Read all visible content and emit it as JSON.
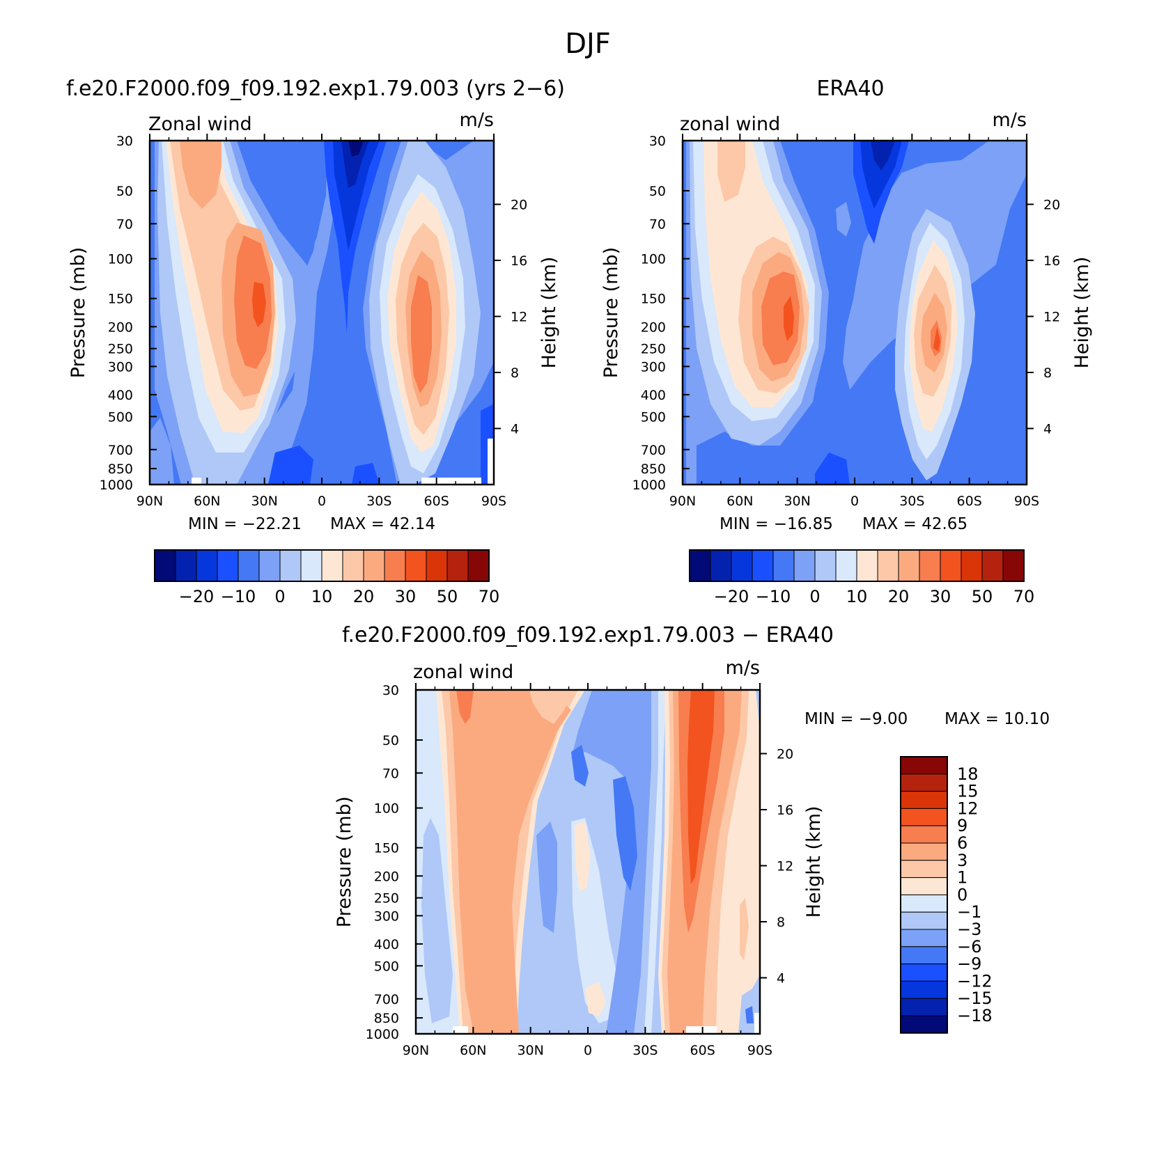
{
  "figure": {
    "title": "DJF",
    "panels": [
      {
        "id": "model",
        "title": "f.e20.F2000.f09_f09.192.exp1.79.003 (yrs 2−6)",
        "left_label": "Zonal wind",
        "right_label": "m/s",
        "ylabel": "Pressure (mb)",
        "ylabel_right": "Height (km)",
        "min_text": "MIN = −22.21",
        "max_text": "MAX = 42.14",
        "colorbar_labels": [
          "−20",
          "−10",
          "0",
          "10",
          "20",
          "30",
          "50",
          "70"
        ]
      },
      {
        "id": "obs",
        "title": "ERA40",
        "left_label": "zonal wind",
        "right_label": "m/s",
        "ylabel": "Pressure (mb)",
        "ylabel_right": "Height (km)",
        "min_text": "MIN = −16.85",
        "max_text": "MAX = 42.65",
        "colorbar_labels": [
          "−20",
          "−10",
          "0",
          "10",
          "20",
          "30",
          "50",
          "70"
        ]
      },
      {
        "id": "diff",
        "title": "f.e20.F2000.f09_f09.192.exp1.79.003 − ERA40",
        "left_label": "zonal wind",
        "right_label": "m/s",
        "ylabel": "Pressure (mb)",
        "ylabel_right": "Height (km)",
        "min_text": "MIN = −9.00",
        "max_text": "MAX = 10.10",
        "colorbar_labels": [
          "18",
          "15",
          "12",
          "9",
          "6",
          "3",
          "1",
          "0",
          "−1",
          "−3",
          "−6",
          "−9",
          "−12",
          "−15",
          "−18"
        ]
      }
    ],
    "x_tick_labels": [
      "90N",
      "60N",
      "30N",
      "0",
      "30S",
      "60S",
      "90S"
    ],
    "y_tick_labels": [
      "30",
      "50",
      "70",
      "100",
      "150",
      "200",
      "250",
      "300",
      "400",
      "500",
      "700",
      "850",
      "1000"
    ],
    "height_tick_labels": [
      "20",
      "16",
      "12",
      "8",
      "4"
    ]
  },
  "chart_data": [
    {
      "type": "heatmap",
      "title": "f.e20.F2000.f09_f09.192.exp1.79.003 (yrs 2−6)",
      "xlabel": "",
      "ylabel": "Pressure (mb)",
      "x_ticks": [
        "90N",
        "60N",
        "30N",
        "0",
        "30S",
        "60S",
        "90S"
      ],
      "y_ticks": [
        30,
        50,
        70,
        100,
        150,
        200,
        250,
        300,
        400,
        500,
        700,
        850,
        1000
      ],
      "yscale": "log",
      "ylim": [
        1000,
        30
      ],
      "units": "m/s",
      "min": -22.21,
      "max": 42.14,
      "contour_levels": [
        -25,
        -20,
        -15,
        -10,
        -5,
        0,
        5,
        10,
        15,
        20,
        25,
        30,
        40,
        50,
        60,
        70,
        80
      ],
      "features": [
        {
          "kind": "max",
          "lat": 30,
          "lev": 180,
          "value": 42.14
        },
        {
          "kind": "max",
          "lat": -50,
          "lev": 220,
          "value": 35
        },
        {
          "kind": "min",
          "lat": -15,
          "lev": 30,
          "value": -22.21
        }
      ]
    },
    {
      "type": "heatmap",
      "title": "ERA40",
      "xlabel": "",
      "ylabel": "Pressure (mb)",
      "x_ticks": [
        "90N",
        "60N",
        "30N",
        "0",
        "30S",
        "60S",
        "90S"
      ],
      "y_ticks": [
        30,
        50,
        70,
        100,
        150,
        200,
        250,
        300,
        400,
        500,
        700,
        850,
        1000
      ],
      "yscale": "log",
      "ylim": [
        1000,
        30
      ],
      "units": "m/s",
      "min": -16.85,
      "max": 42.65,
      "contour_levels": [
        -25,
        -20,
        -15,
        -10,
        -5,
        0,
        5,
        10,
        15,
        20,
        25,
        30,
        40,
        50,
        60,
        70,
        80
      ],
      "features": [
        {
          "kind": "max",
          "lat": 30,
          "lev": 190,
          "value": 42.65
        },
        {
          "kind": "max",
          "lat": -48,
          "lev": 230,
          "value": 30
        },
        {
          "kind": "min",
          "lat": -15,
          "lev": 30,
          "value": -16.85
        }
      ]
    },
    {
      "type": "heatmap",
      "title": "f.e20.F2000.f09_f09.192.exp1.79.003 − ERA40",
      "xlabel": "",
      "ylabel": "Pressure (mb)",
      "x_ticks": [
        "90N",
        "60N",
        "30N",
        "0",
        "30S",
        "60S",
        "90S"
      ],
      "y_ticks": [
        30,
        50,
        70,
        100,
        150,
        200,
        250,
        300,
        400,
        500,
        700,
        850,
        1000
      ],
      "yscale": "log",
      "ylim": [
        1000,
        30
      ],
      "units": "m/s",
      "min": -9.0,
      "max": 10.1,
      "contour_levels": [
        -18,
        -15,
        -12,
        -9,
        -6,
        -3,
        -1,
        0,
        1,
        3,
        6,
        9,
        12,
        15,
        18
      ],
      "features": [
        {
          "kind": "max",
          "lat": -58,
          "lev": 60,
          "value": 10.1
        },
        {
          "kind": "min",
          "lat": -18,
          "lev": 150,
          "value": -9.0
        }
      ]
    }
  ],
  "colors": {
    "palette": [
      "#020a78",
      "#0322b0",
      "#0637dd",
      "#1a50ff",
      "#4478f5",
      "#7ca1f6",
      "#afc8f8",
      "#d9e8fb",
      "#fde7d4",
      "#fdc8a8",
      "#fbaa80",
      "#f87d4f",
      "#f2531f",
      "#da3508",
      "#b5220d",
      "#870606"
    ]
  }
}
